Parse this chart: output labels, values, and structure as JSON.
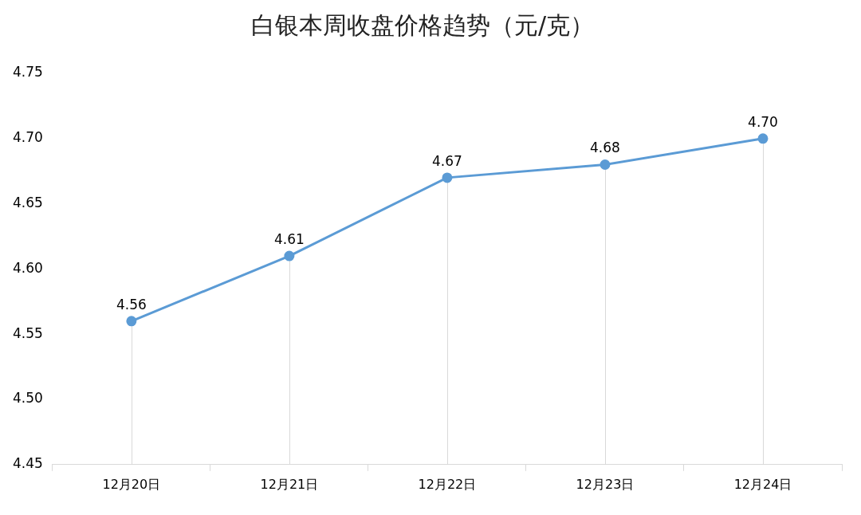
{
  "chart_data": {
    "type": "line",
    "title": "白银本周收盘价格趋势（元/克）",
    "categories": [
      "12月20日",
      "12月21日",
      "12月22日",
      "12月23日",
      "12月24日"
    ],
    "values": [
      4.56,
      4.61,
      4.67,
      4.68,
      4.7
    ],
    "value_labels": [
      "4.56",
      "4.61",
      "4.67",
      "4.68",
      "4.70"
    ],
    "color": "#5b9bd5",
    "ylim": [
      4.45,
      4.75
    ],
    "yticks": [
      {
        "value": 4.45,
        "label": "4.45"
      },
      {
        "value": 4.5,
        "label": "4.50"
      },
      {
        "value": 4.55,
        "label": "4.55"
      },
      {
        "value": 4.6,
        "label": "4.60"
      },
      {
        "value": 4.65,
        "label": "4.65"
      },
      {
        "value": 4.7,
        "label": "4.70"
      },
      {
        "value": 4.75,
        "label": "4.75"
      }
    ],
    "grid": "x",
    "legend": false,
    "marker": "circle",
    "line_style": "solid"
  }
}
